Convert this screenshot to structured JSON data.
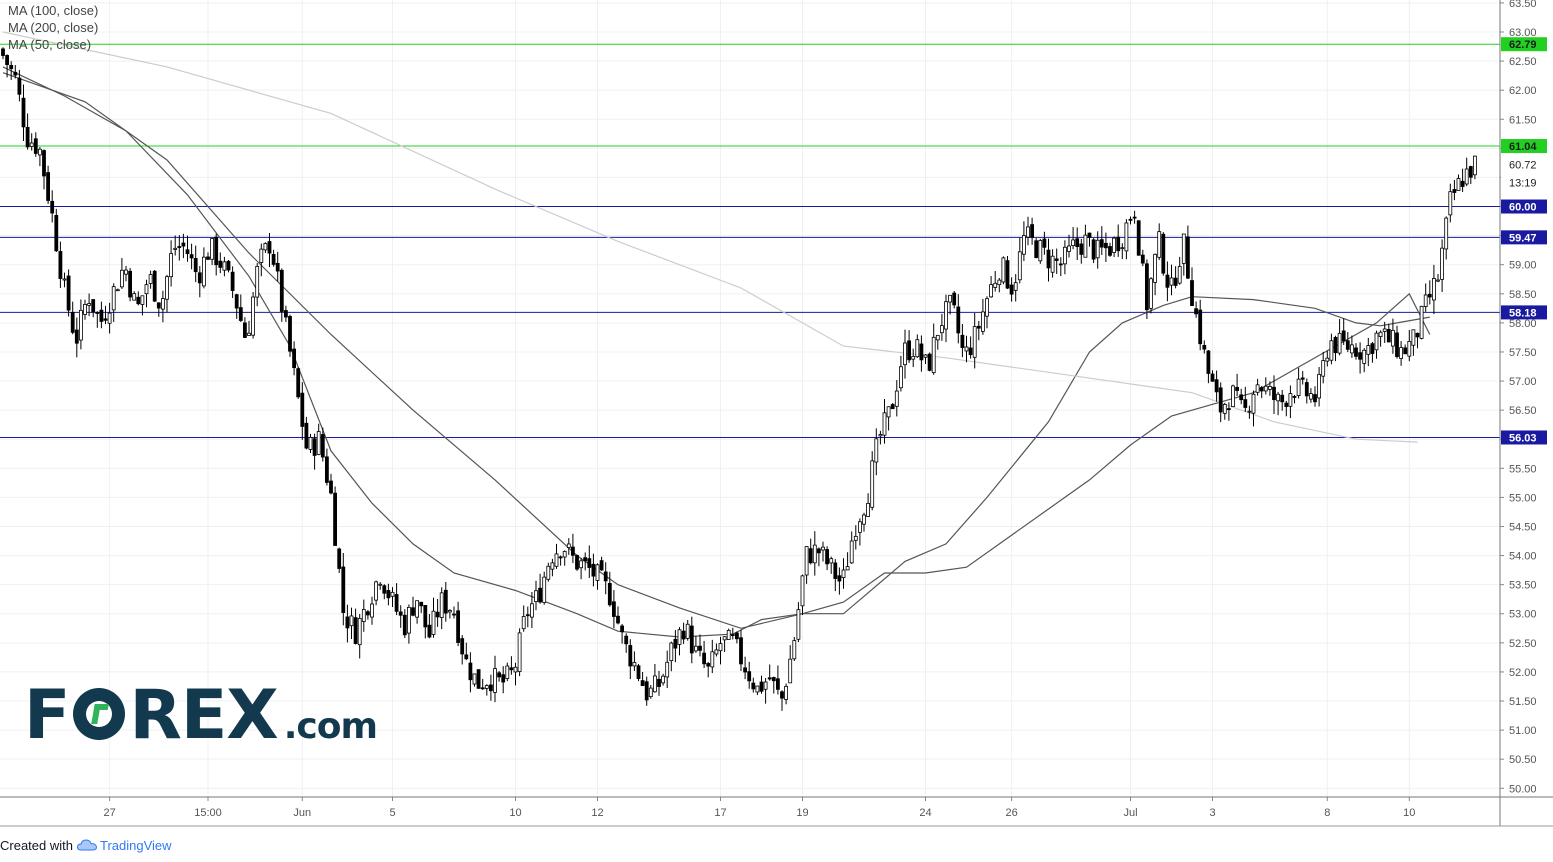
{
  "legend": [
    "MA (100, close)",
    "MA (200, close)",
    "MA (50, close)"
  ],
  "logo": {
    "letters_before": "F",
    "letters_after": "REX",
    "suffix": ".com"
  },
  "footer": {
    "created_with": "Created with",
    "brand": "TradingView"
  },
  "colors": {
    "up": "#ffffff",
    "down": "#000000",
    "grid": "#eef0f3",
    "hline_blue": "#1a1aa0",
    "hline_green": "#21d021",
    "ma": "#555555",
    "ma200": "#cccccc"
  },
  "chart_data": {
    "type": "candlestick",
    "ylim": [
      49.85,
      63.55
    ],
    "y_ticks": [
      "50.00",
      "50.50",
      "51.00",
      "51.50",
      "52.00",
      "52.50",
      "53.00",
      "53.50",
      "54.00",
      "54.50",
      "55.00",
      "55.50",
      "56.00",
      "56.50",
      "57.00",
      "57.50",
      "58.00",
      "58.50",
      "59.00",
      "59.50",
      "60.00",
      "60.50",
      "61.00",
      "61.50",
      "62.00",
      "62.50",
      "63.00",
      "63.50"
    ],
    "x_ticks": [
      {
        "label": "27",
        "bar": 26
      },
      {
        "label": "15:00",
        "bar": 50
      },
      {
        "label": "Jun",
        "bar": 73
      },
      {
        "label": "5",
        "bar": 95
      },
      {
        "label": "10",
        "bar": 125
      },
      {
        "label": "12",
        "bar": 145
      },
      {
        "label": "17",
        "bar": 175
      },
      {
        "label": "19",
        "bar": 195
      },
      {
        "label": "24",
        "bar": 225
      },
      {
        "label": "26",
        "bar": 246
      },
      {
        "label": "Jul",
        "bar": 275
      },
      {
        "label": "3",
        "bar": 295
      },
      {
        "label": "8",
        "bar": 323
      },
      {
        "label": "10",
        "bar": 343
      }
    ],
    "horizontal_lines": [
      {
        "value": 62.79,
        "label": "62.79",
        "style": "green"
      },
      {
        "value": 61.04,
        "label": "61.04",
        "style": "green"
      },
      {
        "value": 60.0,
        "label": "60.00",
        "style": "blue"
      },
      {
        "value": 59.47,
        "label": "59.47",
        "style": "blue"
      },
      {
        "value": 58.18,
        "label": "58.18",
        "style": "blue"
      },
      {
        "value": 56.03,
        "label": "56.03",
        "style": "blue"
      }
    ],
    "last_price": {
      "value": 60.72,
      "label": "60.72",
      "countdown": "13:19"
    },
    "path": [
      62.6,
      62.2,
      61.2,
      61.0,
      59.9,
      58.6,
      57.7,
      58.5,
      58.0,
      58.5,
      59.0,
      58.2,
      58.8,
      58.3,
      59.3,
      59.3,
      58.8,
      59.3,
      59.0,
      58.5,
      57.7,
      59.0,
      59.4,
      58.2,
      57.0,
      55.8,
      56.0,
      55.0,
      53.0,
      52.7,
      53.2,
      53.7,
      53.2,
      52.8,
      53.3,
      52.6,
      53.2,
      53.1,
      52.2,
      51.8,
      51.9,
      51.8,
      52.0,
      53.0,
      53.3,
      54.0,
      54.2,
      53.9,
      53.8,
      53.6,
      53.3,
      52.5,
      52.1,
      51.6,
      51.8,
      52.4,
      52.8,
      52.3,
      52.0,
      52.5,
      52.5,
      52.1,
      51.7,
      51.9,
      51.5,
      52.5,
      54.0,
      54.1,
      53.8,
      53.5,
      54.5,
      55.0,
      56.0,
      56.5,
      57.5,
      57.6,
      57.2,
      58.0,
      58.3,
      57.4,
      57.8,
      58.5,
      59.0,
      58.6,
      59.5,
      59.3,
      59.1,
      59.0,
      59.3,
      59.4,
      59.2,
      59.3,
      59.5,
      60.0,
      58.3,
      59.4,
      58.5,
      59.4,
      58.2,
      57.2,
      56.5,
      56.8,
      56.4,
      57.0,
      56.8,
      56.6,
      56.9,
      56.8,
      56.7,
      57.7,
      57.6,
      57.6,
      57.5,
      57.8,
      57.7,
      57.5,
      57.7,
      58.3,
      58.8,
      60.1,
      60.5,
      60.72
    ],
    "n_bars": 360,
    "ma_lines": [
      {
        "name": "MA (50, close)",
        "color": "#555555",
        "points": [
          [
            0,
            62.4
          ],
          [
            15,
            61.9
          ],
          [
            30,
            61.3
          ],
          [
            45,
            60.2
          ],
          [
            60,
            58.8
          ],
          [
            70,
            57.6
          ],
          [
            80,
            55.8
          ],
          [
            90,
            54.9
          ],
          [
            100,
            54.2
          ],
          [
            110,
            53.7
          ],
          [
            125,
            53.4
          ],
          [
            140,
            53.0
          ],
          [
            150,
            52.7
          ],
          [
            165,
            52.6
          ],
          [
            178,
            52.65
          ],
          [
            185,
            52.9
          ],
          [
            195,
            53.0
          ],
          [
            205,
            53.2
          ],
          [
            215,
            53.7
          ],
          [
            225,
            53.7
          ],
          [
            235,
            53.8
          ],
          [
            245,
            54.3
          ],
          [
            255,
            54.8
          ],
          [
            265,
            55.3
          ],
          [
            275,
            55.9
          ],
          [
            285,
            56.4
          ],
          [
            295,
            56.6
          ],
          [
            305,
            56.8
          ],
          [
            315,
            57.2
          ],
          [
            325,
            57.6
          ],
          [
            335,
            58.0
          ],
          [
            343,
            58.5
          ],
          [
            348,
            57.8
          ]
        ]
      },
      {
        "name": "MA (100, close)",
        "color": "#555555",
        "points": [
          [
            0,
            62.3
          ],
          [
            20,
            61.8
          ],
          [
            40,
            60.8
          ],
          [
            60,
            59.2
          ],
          [
            80,
            57.8
          ],
          [
            100,
            56.5
          ],
          [
            120,
            55.3
          ],
          [
            140,
            54.0
          ],
          [
            150,
            53.5
          ],
          [
            165,
            53.1
          ],
          [
            180,
            52.75
          ],
          [
            195,
            53.0
          ],
          [
            205,
            53.0
          ],
          [
            210,
            53.3
          ],
          [
            220,
            53.9
          ],
          [
            230,
            54.2
          ],
          [
            240,
            55.0
          ],
          [
            255,
            56.3
          ],
          [
            265,
            57.5
          ],
          [
            273,
            58.0
          ],
          [
            283,
            58.3
          ],
          [
            290,
            58.45
          ],
          [
            305,
            58.4
          ],
          [
            320,
            58.25
          ],
          [
            330,
            58.0
          ],
          [
            336,
            57.95
          ],
          [
            340,
            58.0
          ],
          [
            348,
            58.1
          ]
        ]
      },
      {
        "name": "MA (200, close)",
        "color": "#cccccc",
        "points": [
          [
            0,
            63.0
          ],
          [
            40,
            62.4
          ],
          [
            80,
            61.6
          ],
          [
            120,
            60.3
          ],
          [
            150,
            59.4
          ],
          [
            180,
            58.6
          ],
          [
            205,
            57.6
          ],
          [
            230,
            57.4
          ],
          [
            260,
            57.1
          ],
          [
            290,
            56.8
          ],
          [
            310,
            56.3
          ],
          [
            330,
            56.0
          ],
          [
            345,
            55.95
          ]
        ]
      }
    ]
  }
}
